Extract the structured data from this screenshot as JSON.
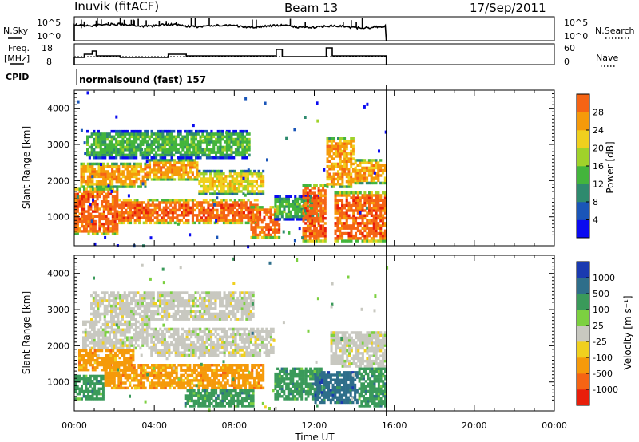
{
  "header": {
    "station": "Inuvik (fitACF)",
    "beam": "Beam 13",
    "date": "17/Sep/2011"
  },
  "top_panels": {
    "nsky": {
      "label": "N.Sky",
      "ticks": [
        "10^5",
        "10^0"
      ]
    },
    "nsearch": {
      "label": "N.Search",
      "ticks": [
        "10^5",
        "10^0"
      ]
    },
    "freq": {
      "label_line1": "Freq.",
      "label_line2": "[MHz]",
      "ticks": [
        "18",
        "8"
      ]
    },
    "nave": {
      "label": "Nave",
      "ticks": [
        "60",
        "0"
      ]
    },
    "cpid": {
      "label": "CPID",
      "value": "normalsound (fast) 157"
    }
  },
  "colors": {
    "power": [
      "#0a0af0",
      "#1a55b8",
      "#2e8a6e",
      "#43b53c",
      "#a0d22a",
      "#f0d01e",
      "#f59a0a",
      "#f56414",
      "#e81e0a"
    ],
    "velocity": [
      "#e81e0a",
      "#f56414",
      "#f59a0a",
      "#f0d01e",
      "#c8c8c0",
      "#7cd040",
      "#3a9a5a",
      "#2e6e8a",
      "#1a3ab0"
    ]
  },
  "chart_data": [
    {
      "type": "heatmap",
      "title": "",
      "xlabel": "",
      "ylabel": "Slant Range [km]",
      "x_ticks": [
        "00:00",
        "04:00",
        "08:00",
        "12:00",
        "16:00",
        "20:00",
        "00:00"
      ],
      "y_ticks": [
        "1000",
        "2000",
        "3000",
        "4000"
      ],
      "xlim_hours": [
        0,
        24
      ],
      "ylim_km": [
        200,
        4500
      ],
      "data_extent_hours": [
        0,
        15.6
      ],
      "colorbar": {
        "label": "Power [dB]",
        "ticks": [
          "4",
          "8",
          "12",
          "16",
          "20",
          "24",
          "28"
        ],
        "range": [
          0,
          32
        ]
      },
      "bands": [
        {
          "t0": 0.0,
          "t1": 2.2,
          "r0": 500,
          "r1": 1800,
          "power": 28
        },
        {
          "t0": 0.3,
          "t1": 3.6,
          "r0": 1800,
          "r1": 2500,
          "power": 24
        },
        {
          "t0": 2.2,
          "t1": 9.2,
          "r0": 800,
          "r1": 1500,
          "power": 28
        },
        {
          "t0": 3.6,
          "t1": 6.2,
          "r0": 2000,
          "r1": 2600,
          "power": 24
        },
        {
          "t0": 6.2,
          "t1": 9.5,
          "r0": 1600,
          "r1": 2300,
          "power": 20
        },
        {
          "t0": 8.8,
          "t1": 10.3,
          "r0": 400,
          "r1": 1300,
          "power": 28
        },
        {
          "t0": 10.0,
          "t1": 12.2,
          "r0": 900,
          "r1": 1600,
          "power": 12
        },
        {
          "t0": 11.4,
          "t1": 12.6,
          "r0": 300,
          "r1": 1900,
          "power": 28
        },
        {
          "t0": 12.6,
          "t1": 14.0,
          "r0": 1800,
          "r1": 3200,
          "power": 24
        },
        {
          "t0": 13.0,
          "t1": 15.6,
          "r0": 300,
          "r1": 1700,
          "power": 28
        },
        {
          "t0": 14.0,
          "t1": 15.6,
          "r0": 1900,
          "r1": 2600,
          "power": 24
        },
        {
          "t0": 0.6,
          "t1": 8.8,
          "r0": 2600,
          "r1": 3400,
          "power": 12
        }
      ]
    },
    {
      "type": "heatmap",
      "title": "",
      "xlabel": "Time UT",
      "ylabel": "Slant Range [km]",
      "x_ticks": [
        "00:00",
        "04:00",
        "08:00",
        "12:00",
        "16:00",
        "20:00",
        "00:00"
      ],
      "y_ticks": [
        "1000",
        "2000",
        "3000",
        "4000"
      ],
      "xlim_hours": [
        0,
        24
      ],
      "ylim_km": [
        200,
        4500
      ],
      "data_extent_hours": [
        0,
        15.6
      ],
      "colorbar": {
        "label": "Velocity [m s⁻¹]",
        "ticks": [
          "-1000",
          "-500",
          "-100",
          "-25",
          "25",
          "100",
          "500",
          "1000"
        ]
      },
      "bands": [
        {
          "t0": 0.0,
          "t1": 1.5,
          "r0": 500,
          "r1": 1200,
          "velocity": 100
        },
        {
          "t0": 0.4,
          "t1": 3.8,
          "r0": 1900,
          "r1": 2700,
          "velocity": 0
        },
        {
          "t0": 0.2,
          "t1": 3.0,
          "r0": 1300,
          "r1": 1900,
          "velocity": -100
        },
        {
          "t0": 1.5,
          "t1": 9.5,
          "r0": 800,
          "r1": 1500,
          "velocity": -100
        },
        {
          "t0": 3.8,
          "t1": 10.0,
          "r0": 1700,
          "r1": 2500,
          "velocity": 0
        },
        {
          "t0": 5.5,
          "t1": 9.0,
          "r0": 300,
          "r1": 800,
          "velocity": 100
        },
        {
          "t0": 10.0,
          "t1": 12.4,
          "r0": 500,
          "r1": 1400,
          "velocity": 100
        },
        {
          "t0": 12.0,
          "t1": 14.2,
          "r0": 400,
          "r1": 1300,
          "velocity": 500
        },
        {
          "t0": 12.8,
          "t1": 15.6,
          "r0": 1400,
          "r1": 2400,
          "velocity": 0
        },
        {
          "t0": 14.2,
          "t1": 15.6,
          "r0": 300,
          "r1": 1400,
          "velocity": 100
        },
        {
          "t0": 0.8,
          "t1": 9.0,
          "r0": 2700,
          "r1": 3500,
          "velocity": 0
        }
      ]
    }
  ]
}
